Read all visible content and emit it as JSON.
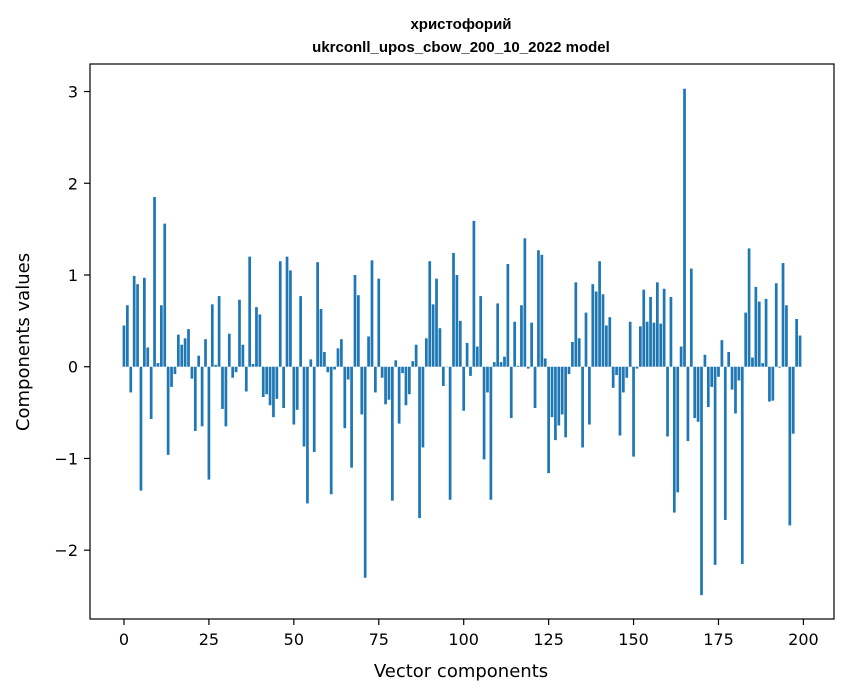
{
  "chart_data": {
    "type": "bar",
    "title_line1": "христофорий",
    "title_line2": "ukrconll_upos_cbow_200_10_2022 model",
    "xlabel": "Vector components",
    "ylabel": "Components values",
    "xlim": [
      -10,
      209
    ],
    "ylim": [
      -2.75,
      3.3
    ],
    "xticks": [
      0,
      25,
      50,
      75,
      100,
      125,
      150,
      175,
      200
    ],
    "yticks": [
      -2,
      -1,
      0,
      1,
      2,
      3
    ],
    "ytick_labels": [
      "−2",
      "−1",
      "0",
      "1",
      "2",
      "3"
    ],
    "bar_color": "#1f77b4",
    "grid": false,
    "x": [
      0,
      1,
      2,
      3,
      4,
      5,
      6,
      7,
      8,
      9,
      10,
      11,
      12,
      13,
      14,
      15,
      16,
      17,
      18,
      19,
      20,
      21,
      22,
      23,
      24,
      25,
      26,
      27,
      28,
      29,
      30,
      31,
      32,
      33,
      34,
      35,
      36,
      37,
      38,
      39,
      40,
      41,
      42,
      43,
      44,
      45,
      46,
      47,
      48,
      49,
      50,
      51,
      52,
      53,
      54,
      55,
      56,
      57,
      58,
      59,
      60,
      61,
      62,
      63,
      64,
      65,
      66,
      67,
      68,
      69,
      70,
      71,
      72,
      73,
      74,
      75,
      76,
      77,
      78,
      79,
      80,
      81,
      82,
      83,
      84,
      85,
      86,
      87,
      88,
      89,
      90,
      91,
      92,
      93,
      94,
      95,
      96,
      97,
      98,
      99,
      100,
      101,
      102,
      103,
      104,
      105,
      106,
      107,
      108,
      109,
      110,
      111,
      112,
      113,
      114,
      115,
      116,
      117,
      118,
      119,
      120,
      121,
      122,
      123,
      124,
      125,
      126,
      127,
      128,
      129,
      130,
      131,
      132,
      133,
      134,
      135,
      136,
      137,
      138,
      139,
      140,
      141,
      142,
      143,
      144,
      145,
      146,
      147,
      148,
      149,
      150,
      151,
      152,
      153,
      154,
      155,
      156,
      157,
      158,
      159,
      160,
      161,
      162,
      163,
      164,
      165,
      166,
      167,
      168,
      169,
      170,
      171,
      172,
      173,
      174,
      175,
      176,
      177,
      178,
      179,
      180,
      181,
      182,
      183,
      184,
      185,
      186,
      187,
      188,
      189,
      190,
      191,
      192,
      193,
      194,
      195,
      196,
      197,
      198,
      199
    ],
    "values": [
      0.45,
      0.67,
      -0.28,
      0.99,
      0.9,
      -1.35,
      0.97,
      0.21,
      -0.57,
      1.85,
      0.04,
      0.67,
      1.56,
      -0.96,
      -0.22,
      -0.08,
      0.35,
      0.24,
      0.31,
      0.41,
      -0.13,
      -0.7,
      0.12,
      -0.65,
      0.3,
      -1.23,
      0.68,
      0.02,
      0.77,
      -0.46,
      -0.65,
      0.36,
      -0.12,
      -0.06,
      0.73,
      0.24,
      -0.27,
      1.2,
      0.03,
      0.65,
      0.57,
      -0.33,
      -0.3,
      -0.42,
      -0.55,
      -0.35,
      1.15,
      -0.45,
      1.2,
      1.05,
      -0.63,
      -0.47,
      0.77,
      -0.87,
      -1.49,
      0.08,
      -0.93,
      1.14,
      0.63,
      0.16,
      -0.06,
      -1.39,
      -0.03,
      0.2,
      0.3,
      -0.67,
      -0.14,
      -1.1,
      1.0,
      0.78,
      -0.52,
      -2.3,
      0.33,
      1.16,
      -0.28,
      0.96,
      -0.12,
      -0.41,
      -0.36,
      -1.46,
      0.07,
      -0.62,
      -0.07,
      -0.42,
      -0.3,
      0.06,
      0.24,
      -1.65,
      -0.88,
      0.31,
      1.15,
      0.68,
      0.96,
      0.42,
      -0.21,
      0.0,
      -1.45,
      1.24,
      1.0,
      0.5,
      -0.48,
      0.26,
      -0.1,
      1.59,
      0.22,
      0.77,
      -1.01,
      -0.28,
      -1.45,
      0.05,
      0.69,
      0.05,
      0.11,
      1.12,
      -0.56,
      0.49,
      0.01,
      0.67,
      1.4,
      -0.02,
      0.48,
      -0.45,
      1.27,
      1.22,
      0.09,
      -1.16,
      -0.55,
      -0.8,
      -0.64,
      -0.52,
      -0.77,
      -0.08,
      0.27,
      0.92,
      0.31,
      -0.88,
      0.59,
      -0.63,
      0.9,
      0.82,
      1.15,
      0.79,
      0.45,
      0.54,
      -0.23,
      -0.09,
      -0.75,
      -0.28,
      -0.12,
      0.49,
      -0.98,
      -0.02,
      0.44,
      0.84,
      0.49,
      0.76,
      0.48,
      0.92,
      0.47,
      0.85,
      -0.76,
      0.76,
      -1.59,
      -1.37,
      0.22,
      3.03,
      -0.81,
      1.07,
      -0.56,
      -0.6,
      -2.49,
      0.13,
      -0.44,
      -0.22,
      -2.16,
      -0.11,
      0.29,
      -1.67,
      0.16,
      -0.25,
      -0.51,
      -0.15,
      -2.15,
      0.59,
      1.29,
      0.1,
      0.87,
      0.71,
      0.04,
      0.74,
      -0.38,
      -0.37,
      0.91,
      -0.01,
      1.13,
      0.67,
      -1.73,
      -0.73,
      0.52,
      0.34
    ]
  }
}
